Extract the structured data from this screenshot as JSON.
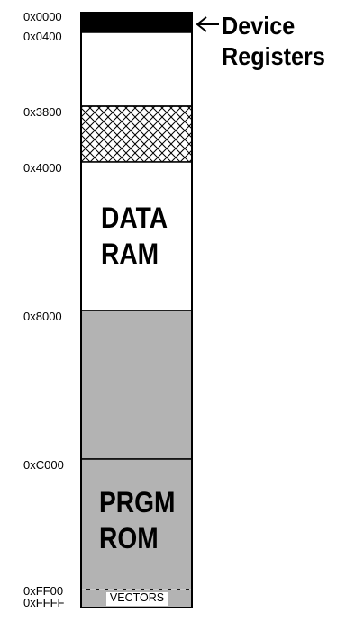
{
  "addresses": {
    "a0000": "0x0000",
    "a0400": "0x0400",
    "a3800": "0x3800",
    "a4000": "0x4000",
    "a8000": "0x8000",
    "aC000": "0xC000",
    "aFF00": "0xFF00",
    "aFFFF": "0xFFFF"
  },
  "regions": {
    "data_ram": {
      "line1": "DATA",
      "line2": "RAM"
    },
    "prgm_rom": {
      "line1": "PRGM",
      "line2": "ROM"
    },
    "vectors": "VECTORS"
  },
  "callout": {
    "line1": "Device",
    "line2": "Registers"
  },
  "colors": {
    "device_registers": "#000000",
    "ram": "#ffffff",
    "rom": "#b3b3b3",
    "reserved_hatch": "#000000"
  }
}
